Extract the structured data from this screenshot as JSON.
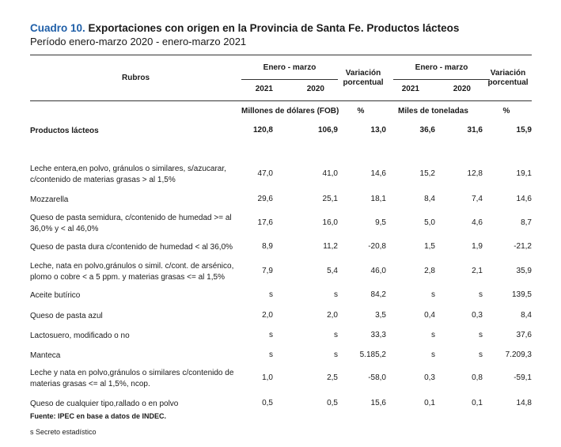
{
  "title": {
    "number": "Cuadro 10.",
    "text": "Exportaciones con origen en la Provincia de Santa Fe. Productos lácteos"
  },
  "subtitle": "Período enero-marzo 2020 - enero-marzo 2021",
  "header": {
    "rubros": "Rubros",
    "group1": "Enero - marzo",
    "group2": "Enero - marzo",
    "var1_line1": "Variación",
    "var1_line2": "porcentual",
    "var2_line1": "Variación",
    "var2_line2": "porcentual",
    "y2021a": "2021",
    "y2020a": "2020",
    "y2021b": "2021",
    "y2020b": "2020",
    "unit1": "Millones de dólares (FOB)",
    "pct1": "%",
    "unit2": "Miles de toneladas",
    "pct2": "%"
  },
  "rows": [
    {
      "label": "Productos lácteos",
      "values": [
        "120,8",
        "106,9",
        "13,0",
        "36,6",
        "31,6",
        "15,9"
      ]
    },
    {
      "label": "Leche entera,en polvo, gránulos o similares, s/azucarar, c/contenido de materias grasas > al 1,5%",
      "values": [
        "47,0",
        "41,0",
        "14,6",
        "15,2",
        "12,8",
        "19,1"
      ]
    },
    {
      "label": "Mozzarella",
      "values": [
        "29,6",
        "25,1",
        "18,1",
        "8,4",
        "7,4",
        "14,6"
      ]
    },
    {
      "label": "Queso de pasta semidura, c/contenido de humedad >= al 36,0% y < al 46,0%",
      "values": [
        "17,6",
        "16,0",
        "9,5",
        "5,0",
        "4,6",
        "8,7"
      ]
    },
    {
      "label": "Queso de pasta dura c/contenido de humedad < al 36,0%",
      "values": [
        "8,9",
        "11,2",
        "-20,8",
        "1,5",
        "1,9",
        "-21,2"
      ]
    },
    {
      "label": "Leche, nata en polvo,gránulos o simil. c/cont. de arsénico, plomo o cobre < a 5 ppm. y materias grasas <= al 1,5%",
      "values": [
        "7,9",
        "5,4",
        "46,0",
        "2,8",
        "2,1",
        "35,9"
      ]
    },
    {
      "label": "Aceite butírico",
      "values": [
        "s",
        "s",
        "84,2",
        "s",
        "s",
        "139,5"
      ]
    },
    {
      "label": "Queso de pasta azul",
      "values": [
        "2,0",
        "2,0",
        "3,5",
        "0,4",
        "0,3",
        "8,4"
      ]
    },
    {
      "label": "Lactosuero, modificado o no",
      "values": [
        "s",
        "s",
        "33,3",
        "s",
        "s",
        "37,6"
      ]
    },
    {
      "label": "Manteca",
      "values": [
        "s",
        "s",
        "5.185,2",
        "s",
        "s",
        "7.209,3"
      ]
    },
    {
      "label": "Leche y nata en polvo,gránulos o similares c/contenido de materias grasas <= al 1,5%, ncop.",
      "values": [
        "1,0",
        "2,5",
        "-58,0",
        "0,3",
        "0,8",
        "-59,1"
      ]
    },
    {
      "label": "Queso de cualquier tipo,rallado o en polvo",
      "values": [
        "0,5",
        "0,5",
        "15,6",
        "0,1",
        "0,1",
        "14,8"
      ]
    }
  ],
  "footnotes": {
    "source": "Fuente: IPEC en base a datos de INDEC.",
    "secret": "s Secreto estadístico"
  }
}
